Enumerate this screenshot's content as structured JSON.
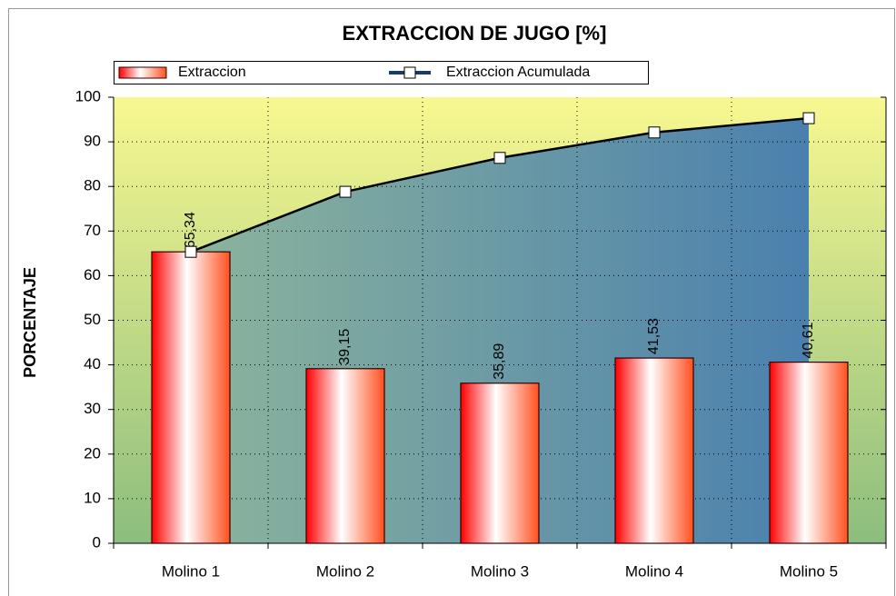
{
  "chart_data": {
    "type": "bar",
    "title": "EXTRACCION DE JUGO [%]",
    "y_label": "PORCENTAJE",
    "categories": [
      "Molino 1",
      "Molino 2",
      "Molino 3",
      "Molino 4",
      "Molino 5"
    ],
    "series": [
      {
        "name": "Extraccion",
        "type": "bar",
        "color": "#ff0000",
        "values": [
          65.34,
          39.15,
          35.89,
          41.53,
          40.61
        ],
        "value_labels": [
          "65,34",
          "39,15",
          "35,89",
          "41,53",
          "40,61"
        ]
      },
      {
        "name": "Extraccion Acumulada",
        "type": "line",
        "color": "#000000",
        "values": [
          65.34,
          78.8,
          86.4,
          92.1,
          95.3
        ]
      }
    ],
    "ylim": [
      0,
      100
    ],
    "yticks": [
      0,
      10,
      20,
      30,
      40,
      50,
      60,
      70,
      80,
      90,
      100
    ],
    "grid": true,
    "legend": "top"
  }
}
